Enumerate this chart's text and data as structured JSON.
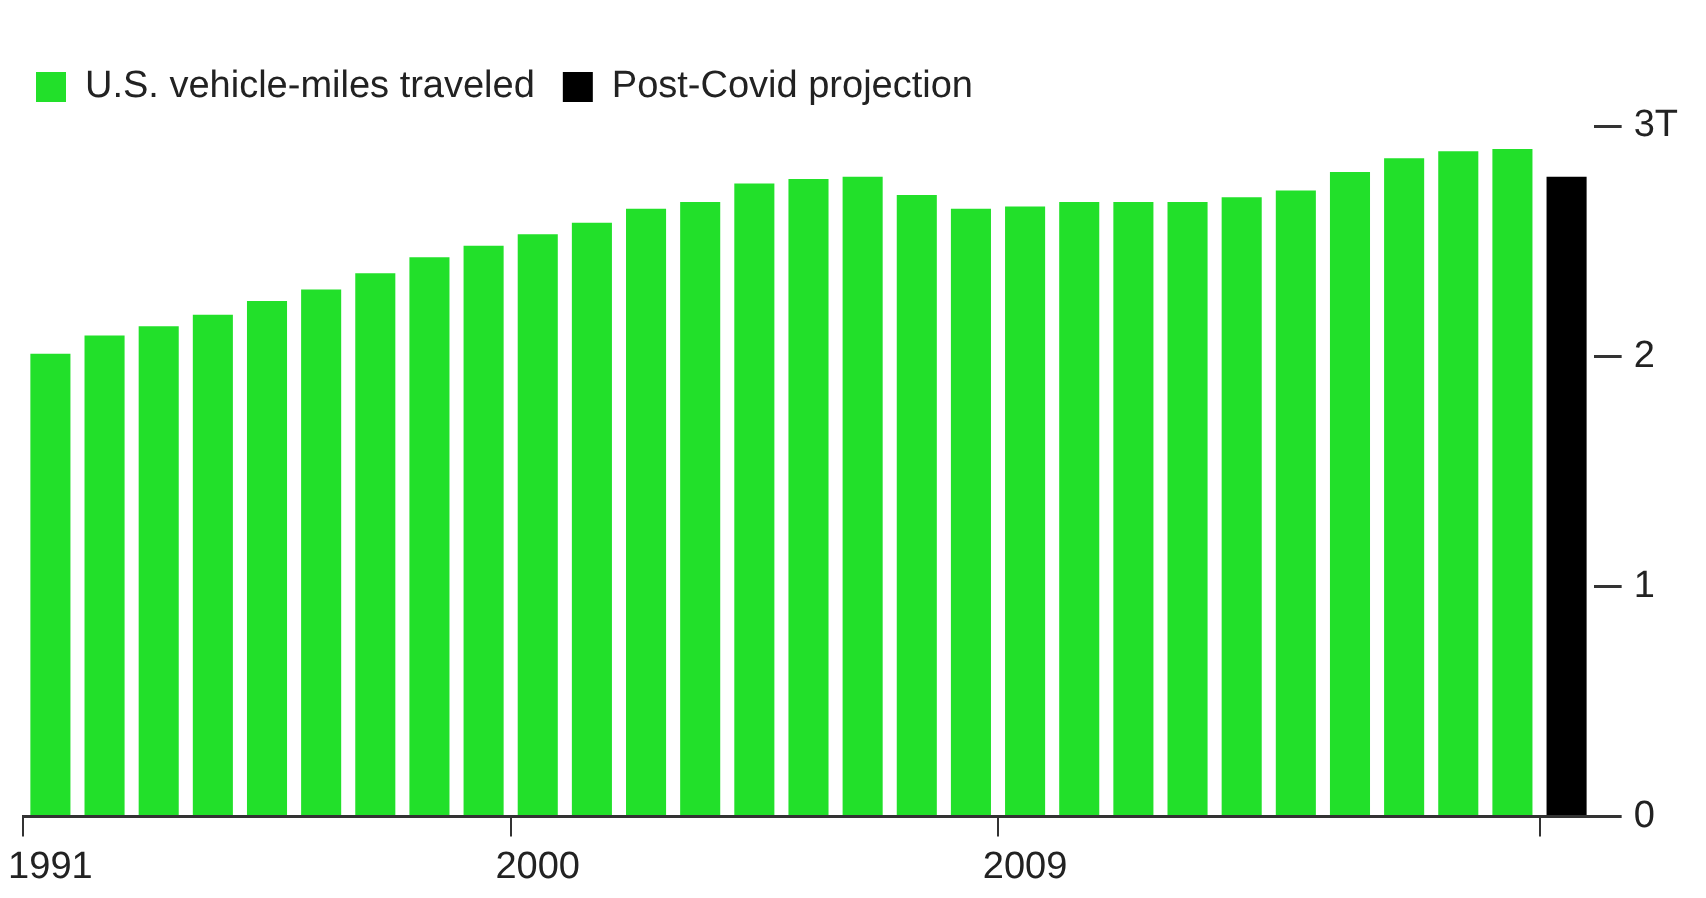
{
  "chart_data": {
    "type": "bar",
    "categories": [
      "1991",
      null,
      null,
      null,
      null,
      null,
      null,
      null,
      null,
      "2000",
      null,
      null,
      null,
      null,
      null,
      null,
      null,
      null,
      "2009",
      null,
      null,
      null,
      null,
      null,
      null,
      null,
      null,
      null,
      null
    ],
    "series": [
      {
        "name": "U.S. vehicle-miles traveled",
        "color": "#22e02a",
        "values": [
          2.01,
          2.09,
          2.13,
          2.18,
          2.24,
          2.29,
          2.36,
          2.43,
          2.48,
          2.53,
          2.58,
          2.64,
          2.67,
          2.75,
          2.77,
          2.78,
          2.7,
          2.64,
          2.65,
          2.67,
          2.67,
          2.67,
          2.69,
          2.72,
          2.8,
          2.86,
          2.89,
          2.9,
          null
        ]
      },
      {
        "name": "Post-Covid projection",
        "color": "#000000",
        "values": [
          null,
          null,
          null,
          null,
          null,
          null,
          null,
          null,
          null,
          null,
          null,
          null,
          null,
          null,
          null,
          null,
          null,
          null,
          null,
          null,
          null,
          null,
          null,
          null,
          null,
          null,
          null,
          null,
          2.78
        ]
      }
    ],
    "ylim": [
      0,
      3
    ],
    "yticks": [
      0,
      1,
      2,
      {
        "value": 3,
        "label": "3T"
      }
    ],
    "grid": false,
    "legend": "top left"
  }
}
